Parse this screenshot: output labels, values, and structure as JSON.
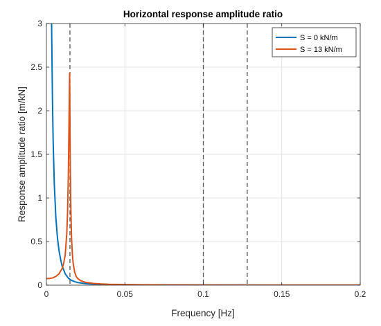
{
  "chart_data": {
    "type": "line",
    "title": "Horizontal response amplitude ratio",
    "xlabel": "Frequency [Hz]",
    "ylabel": "Response amplitude ratio [m/kN]",
    "xlim": [
      0,
      0.2
    ],
    "ylim": [
      0,
      3
    ],
    "xticks": [
      0,
      0.05,
      0.1,
      0.15,
      0.2
    ],
    "xtick_labels": [
      "0",
      "0.05",
      "0.1",
      "0.15",
      "0.2"
    ],
    "yticks": [
      0,
      0.5,
      1,
      1.5,
      2,
      2.5,
      3
    ],
    "ytick_labels": [
      "0",
      "0.5",
      "1",
      "1.5",
      "2",
      "2.5",
      "3"
    ],
    "grid": true,
    "legend_position": "top-right",
    "vertical_dashed_lines": [
      0.015,
      0.1,
      0.128
    ],
    "series": [
      {
        "name": "S = 0 kN/m",
        "color": "#0072BD",
        "x": [
          0.0033,
          0.0038,
          0.0043,
          0.005,
          0.006,
          0.007,
          0.008,
          0.009,
          0.01,
          0.012,
          0.014,
          0.016,
          0.018,
          0.02,
          0.025,
          0.03,
          0.04,
          0.05,
          0.075,
          0.1,
          0.15,
          0.2
        ],
        "y": [
          3.0,
          2.2,
          1.65,
          1.17,
          0.78,
          0.55,
          0.4,
          0.3,
          0.22,
          0.13,
          0.08,
          0.055,
          0.04,
          0.03,
          0.018,
          0.012,
          0.007,
          0.005,
          0.003,
          0.002,
          0.001,
          0.0008
        ]
      },
      {
        "name": "S = 13 kN/m",
        "color": "#D95319",
        "x": [
          0,
          0.002,
          0.004,
          0.006,
          0.008,
          0.01,
          0.011,
          0.012,
          0.013,
          0.0135,
          0.014,
          0.0145,
          0.0148,
          0.015,
          0.0152,
          0.0155,
          0.016,
          0.0165,
          0.017,
          0.018,
          0.019,
          0.02,
          0.022,
          0.025,
          0.03,
          0.035,
          0.04,
          0.05,
          0.06,
          0.08,
          0.1,
          0.15,
          0.2
        ],
        "y": [
          0.075,
          0.077,
          0.083,
          0.1,
          0.13,
          0.19,
          0.25,
          0.35,
          0.6,
          0.85,
          1.3,
          2.0,
          2.43,
          1.9,
          1.4,
          0.95,
          0.55,
          0.37,
          0.26,
          0.15,
          0.1,
          0.075,
          0.05,
          0.032,
          0.02,
          0.014,
          0.01,
          0.007,
          0.005,
          0.003,
          0.002,
          0.0012,
          0.0008
        ]
      }
    ]
  }
}
